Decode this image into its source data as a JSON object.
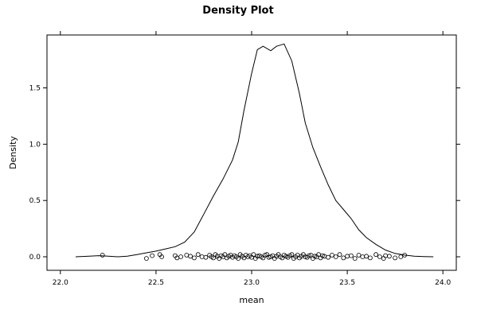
{
  "chart_data": {
    "type": "line",
    "title": "Density Plot",
    "xlabel": "mean",
    "ylabel": "Density",
    "xlim": [
      21.93,
      24.07
    ],
    "ylim": [
      -0.12,
      1.97
    ],
    "x_ticks": [
      22.0,
      22.5,
      23.0,
      23.5,
      24.0
    ],
    "x_tick_labels": [
      "22.0",
      "22.5",
      "23.0",
      "23.5",
      "24.0"
    ],
    "y_ticks": [
      0.0,
      0.5,
      1.0,
      1.5
    ],
    "y_tick_labels": [
      "0.0",
      "0.5",
      "1.0",
      "1.5"
    ],
    "grid": false,
    "series": [
      {
        "x": [
          22.08,
          22.15,
          22.2,
          22.25,
          22.3,
          22.35,
          22.4,
          22.45,
          22.5,
          22.55,
          22.6,
          22.65,
          22.7,
          22.75,
          22.8,
          22.85,
          22.9,
          22.93,
          22.96,
          23.0,
          23.03,
          23.06,
          23.1,
          23.13,
          23.17,
          23.21,
          23.25,
          23.28,
          23.32,
          23.36,
          23.4,
          23.44,
          23.48,
          23.52,
          23.56,
          23.6,
          23.65,
          23.7,
          23.75,
          23.8,
          23.85,
          23.9,
          23.95
        ],
        "y": [
          0.0,
          0.005,
          0.01,
          0.005,
          0.0,
          0.005,
          0.02,
          0.035,
          0.05,
          0.07,
          0.09,
          0.13,
          0.22,
          0.38,
          0.54,
          0.69,
          0.86,
          1.02,
          1.3,
          1.63,
          1.84,
          1.87,
          1.83,
          1.87,
          1.89,
          1.74,
          1.45,
          1.19,
          0.97,
          0.8,
          0.64,
          0.5,
          0.42,
          0.34,
          0.24,
          0.17,
          0.11,
          0.06,
          0.03,
          0.015,
          0.005,
          0.002,
          0.0
        ]
      }
    ],
    "rug_x": [
      22.22,
      22.45,
      22.48,
      22.52,
      22.53,
      22.6,
      22.61,
      22.63,
      22.66,
      22.68,
      22.7,
      22.72,
      22.74,
      22.76,
      22.78,
      22.79,
      22.8,
      22.81,
      22.82,
      22.83,
      22.84,
      22.85,
      22.86,
      22.87,
      22.88,
      22.89,
      22.9,
      22.91,
      22.92,
      22.93,
      22.94,
      22.95,
      22.96,
      22.97,
      22.98,
      22.99,
      23.0,
      23.01,
      23.02,
      23.03,
      23.04,
      23.05,
      23.06,
      23.07,
      23.08,
      23.09,
      23.1,
      23.11,
      23.12,
      23.13,
      23.14,
      23.15,
      23.16,
      23.17,
      23.18,
      23.19,
      23.2,
      23.21,
      23.22,
      23.23,
      23.24,
      23.25,
      23.26,
      23.27,
      23.28,
      23.29,
      23.3,
      23.31,
      23.32,
      23.33,
      23.34,
      23.35,
      23.36,
      23.37,
      23.38,
      23.4,
      23.42,
      23.44,
      23.46,
      23.48,
      23.5,
      23.52,
      23.54,
      23.56,
      23.58,
      23.6,
      23.62,
      23.65,
      23.67,
      23.69,
      23.7,
      23.72,
      23.75,
      23.78,
      23.8
    ],
    "rug_y": [
      0.015,
      -0.015,
      0.01,
      0.02,
      0.0,
      0.01,
      -0.01,
      0.0,
      0.015,
      0.005,
      -0.01,
      0.02,
      0.0,
      -0.005,
      0.015,
      0.0,
      -0.01,
      0.02,
      0.005,
      -0.015,
      0.01,
      0.0,
      0.02,
      -0.01,
      0.005,
      0.015,
      -0.005,
      0.01,
      0.0,
      -0.015,
      0.02,
      0.005,
      -0.01,
      0.015,
      0.0,
      0.01,
      -0.005,
      0.02,
      -0.015,
      0.005,
      0.01,
      0.0,
      -0.01,
      0.015,
      0.02,
      -0.005,
      0.0,
      0.01,
      -0.015,
      0.005,
      0.02,
      0.0,
      -0.01,
      0.015,
      0.005,
      -0.005,
      0.01,
      0.02,
      -0.015,
      0.0,
      0.015,
      -0.01,
      0.005,
      0.02,
      0.0,
      -0.005,
      0.01,
      0.015,
      -0.015,
      0.005,
      0.0,
      0.02,
      -0.01,
      0.01,
      0.005,
      -0.005,
      0.015,
      0.0,
      0.02,
      -0.01,
      0.005,
      0.01,
      -0.015,
      0.015,
      0.0,
      0.005,
      -0.01,
      0.02,
      0.0,
      -0.015,
      0.01,
      0.005,
      -0.01,
      0.0,
      0.015
    ]
  }
}
